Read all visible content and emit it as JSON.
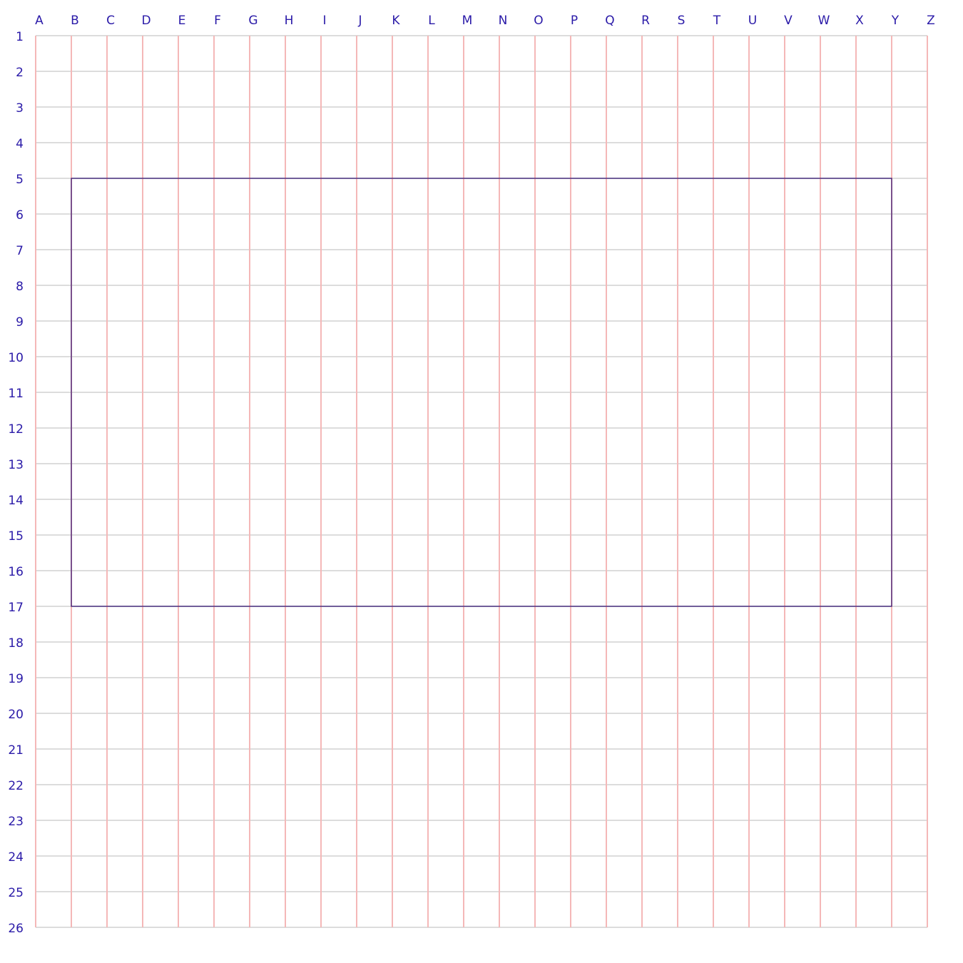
{
  "grid": {
    "column_labels": [
      "A",
      "B",
      "C",
      "D",
      "E",
      "F",
      "G",
      "H",
      "I",
      "J",
      "K",
      "L",
      "M",
      "N",
      "O",
      "P",
      "Q",
      "R",
      "S",
      "T",
      "U",
      "V",
      "W",
      "X",
      "Y",
      "Z"
    ],
    "row_labels": [
      "1",
      "2",
      "3",
      "4",
      "5",
      "6",
      "7",
      "8",
      "9",
      "10",
      "11",
      "12",
      "13",
      "14",
      "15",
      "16",
      "17",
      "18",
      "19",
      "20",
      "21",
      "22",
      "23",
      "24",
      "25",
      "26"
    ],
    "vertical_line_color": "#f4b8b8",
    "horizontal_line_color": "#dcdcdc",
    "label_color": "#2a1aa8"
  },
  "rectangle": {
    "from_cell": [
      "B",
      "5"
    ],
    "to_cell": [
      "Y",
      "17"
    ],
    "stroke_color": "#2a0a6e"
  }
}
